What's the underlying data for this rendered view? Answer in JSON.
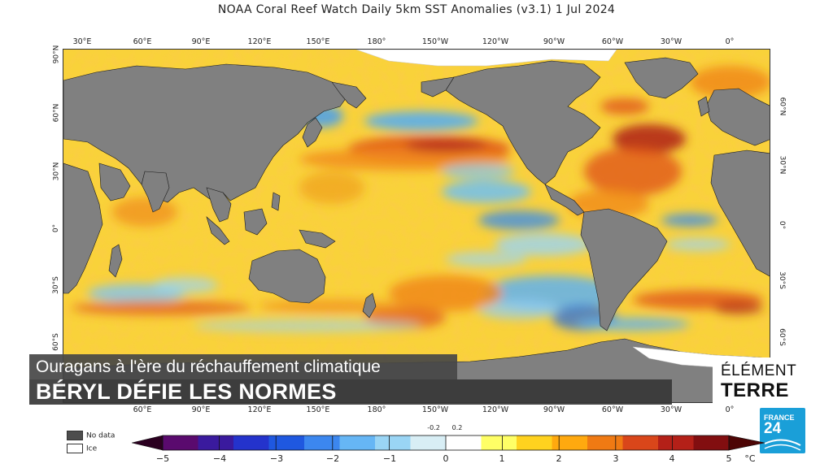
{
  "title": "NOAA Coral Reef Watch Daily 5km SST Anomalies  (v3.1)   1 Jul 2024",
  "top_lon_labels": [
    "30°E",
    "60°E",
    "90°E",
    "120°E",
    "150°E",
    "180°",
    "150°W",
    "120°W",
    "90°W",
    "60°W",
    "30°W",
    "0°"
  ],
  "bottom_lon_labels": [
    "60°E",
    "90°E",
    "120°E",
    "150°E",
    "180°",
    "150°W",
    "120°W",
    "90°W",
    "60°W",
    "30°W",
    "0°"
  ],
  "left_lat_labels": [
    "90°N",
    "60°N",
    "30°N",
    "0°",
    "30°S",
    "60°S"
  ],
  "right_lat_labels": [
    "60°N",
    "30°N",
    "0°",
    "30°S",
    "60°S"
  ],
  "lower_third": {
    "subtitle": "Ouragans à l'ère du réchauffement climatique",
    "headline": "BÉRYL DÉFIE LES NORMES"
  },
  "show_logo": {
    "line1": "ÉLÉMENT",
    "line2": "TERRE"
  },
  "channel_logo": {
    "line1": "FRANCE",
    "line2": "24"
  },
  "legend": {
    "no_data": {
      "label": "No data",
      "color": "#4d4d4d"
    },
    "ice": {
      "label": "Ice",
      "color": "#ffffff"
    }
  },
  "colorbar": {
    "ticks": [
      "−5",
      "−4",
      "−3",
      "−2",
      "−1",
      "0",
      "1",
      "2",
      "3",
      "4",
      "5"
    ],
    "unit": "°C",
    "small_ticks": [
      "-0.2",
      "0.2"
    ],
    "colors": [
      "#2b0020",
      "#5a0a6e",
      "#3a1a9e",
      "#2433cc",
      "#1f58e0",
      "#3c87ef",
      "#66b6f5",
      "#9ad5f5",
      "#d8eef5",
      "#ffffff",
      "#ffff66",
      "#ffd21f",
      "#ffa90f",
      "#f07a13",
      "#d9461a",
      "#b42018",
      "#820e10",
      "#4d0505"
    ]
  },
  "colors": {
    "land": "#808080",
    "ocean_base": "#f9d23a"
  }
}
